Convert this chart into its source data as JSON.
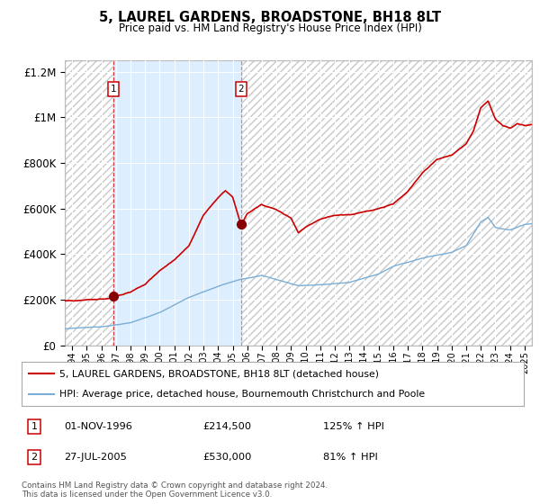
{
  "title": "5, LAUREL GARDENS, BROADSTONE, BH18 8LT",
  "subtitle": "Price paid vs. HM Land Registry's House Price Index (HPI)",
  "legend_line1": "5, LAUREL GARDENS, BROADSTONE, BH18 8LT (detached house)",
  "legend_line2": "HPI: Average price, detached house, Bournemouth Christchurch and Poole",
  "footnote": "Contains HM Land Registry data © Crown copyright and database right 2024.\nThis data is licensed under the Open Government Licence v3.0.",
  "sale1_date": "01-NOV-1996",
  "sale1_price": 214500,
  "sale1_label": "125% ↑ HPI",
  "sale2_date": "27-JUL-2005",
  "sale2_price": 530000,
  "sale2_label": "81% ↑ HPI",
  "sale1_x": 1996.84,
  "sale2_x": 2005.57,
  "red_color": "#cc0000",
  "blue_color": "#7aaed6",
  "hatch_color": "#cccccc",
  "bg_highlight": "#ddeeff",
  "ylim": [
    0,
    1250000
  ],
  "xlim_start": 1993.5,
  "xlim_end": 2025.5,
  "ylabel_ticks": [
    "£0",
    "£200K",
    "£400K",
    "£600K",
    "£800K",
    "£1M",
    "£1.2M"
  ],
  "ytick_vals": [
    0,
    200000,
    400000,
    600000,
    800000,
    1000000,
    1200000
  ],
  "xtick_start": 1994,
  "xtick_end": 2026
}
